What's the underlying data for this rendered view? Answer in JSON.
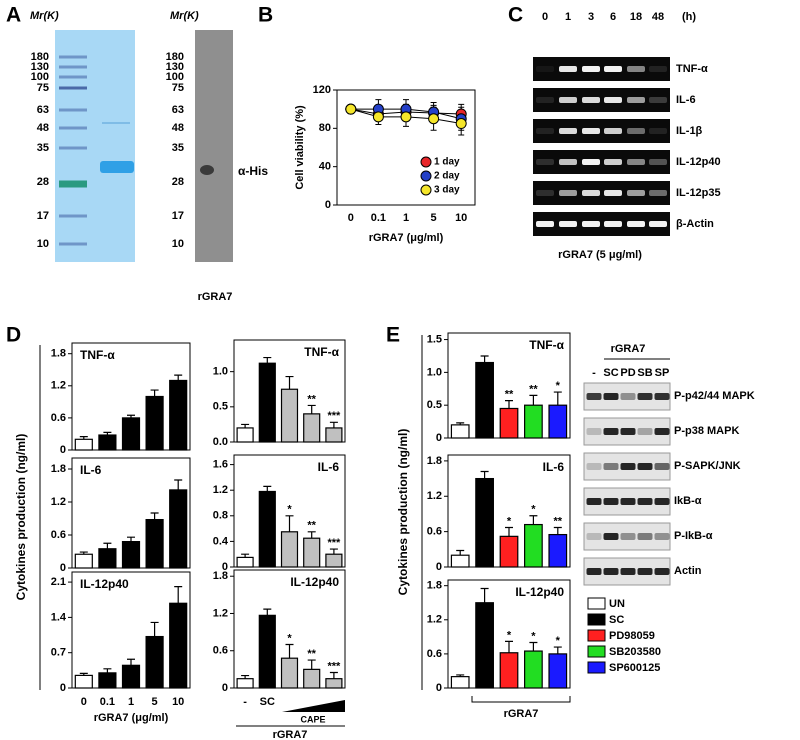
{
  "figure": {
    "panel_labels": [
      "A",
      "B",
      "C",
      "D",
      "E"
    ],
    "gel": {
      "mr_label": "Mr(K)",
      "markers": [
        180,
        130,
        100,
        75,
        63,
        48,
        35,
        28,
        17,
        10
      ],
      "blot_mr_label": "Mr(K)",
      "blot_markers": [
        180,
        130,
        100,
        75,
        63,
        48,
        35,
        28,
        17,
        10
      ],
      "blot_label": "α-His",
      "xlabel": "rGRA7"
    },
    "rtpcr": {
      "times": [
        "0",
        "1",
        "3",
        "6",
        "18",
        "48"
      ],
      "unit": "(h)",
      "genes": [
        "TNF-α",
        "IL-6",
        "IL-1β",
        "IL-12p40",
        "IL-12p35",
        "β-Actin"
      ],
      "xlabel": "rGRA7 (5 μg/ml)"
    },
    "panel_d": {
      "ylabel": "Cytokines production (ng/ml)",
      "left_xlabel": "rGRA7 (μg/ml)",
      "cape_label": "CAPE",
      "mid_xlabel": "rGRA7"
    },
    "panel_e": {
      "ylabel": "Cytokines production (ng/ml)",
      "xlabel": "rGRA7",
      "legend": [
        {
          "name": "UN",
          "color": "#ffffff"
        },
        {
          "name": "SC",
          "color": "#000000"
        },
        {
          "name": "PD98059",
          "color": "#ff2020"
        },
        {
          "name": "SB203580",
          "color": "#22dd22"
        },
        {
          "name": "SP600125",
          "color": "#1a1aff"
        }
      ],
      "blot_header": "rGRA7",
      "blot_lanes": [
        "-",
        "SC",
        "PD",
        "SB",
        "SP"
      ],
      "blot_rows": [
        "P-p42/44 MAPK",
        "P-p38 MAPK",
        "P-SAPK/JNK",
        "IkB-α",
        "P-IkB-α",
        "Actin"
      ]
    }
  },
  "chart_data": [
    {
      "type": "line",
      "ylabel": "Cell viability (%)",
      "xlabel": "rGRA7 (μg/ml)",
      "categories": [
        "0",
        "0.1",
        "1",
        "5",
        "10"
      ],
      "ylim": [
        0,
        120
      ],
      "yticks": [
        0,
        40,
        80,
        120
      ],
      "legend": "lower right",
      "series": [
        {
          "name": "1 day",
          "color": "#e8262a",
          "values": [
            100,
            95,
            97,
            96,
            95
          ],
          "errors": [
            0,
            6,
            8,
            8,
            10
          ]
        },
        {
          "name": "2 day",
          "color": "#2440c8",
          "values": [
            100,
            100,
            100,
            97,
            90
          ],
          "errors": [
            0,
            10,
            10,
            10,
            12
          ]
        },
        {
          "name": "3 day",
          "color": "#f5e62a",
          "values": [
            100,
            92,
            92,
            90,
            85
          ],
          "errors": [
            0,
            8,
            10,
            12,
            12
          ]
        }
      ]
    },
    {
      "type": "bar",
      "title": "TNF-α",
      "ylim": [
        0,
        2.0
      ],
      "yticks": [
        0,
        0.6,
        1.2,
        1.8
      ],
      "values": [
        0.2,
        0.28,
        0.6,
        1.0,
        1.3
      ],
      "errors": [
        0.05,
        0.05,
        0.05,
        0.12,
        0.1
      ],
      "colors": [
        "#ffffff",
        "#000000",
        "#000000",
        "#000000",
        "#000000"
      ]
    },
    {
      "type": "bar",
      "title": "IL-6",
      "ylim": [
        0,
        2.0
      ],
      "yticks": [
        0,
        0.6,
        1.2,
        1.8
      ],
      "values": [
        0.25,
        0.35,
        0.48,
        0.88,
        1.42
      ],
      "errors": [
        0.04,
        0.1,
        0.08,
        0.12,
        0.18
      ],
      "colors": [
        "#ffffff",
        "#000000",
        "#000000",
        "#000000",
        "#000000"
      ]
    },
    {
      "type": "bar",
      "title": "IL-12p40",
      "ylim": [
        0,
        2.3
      ],
      "yticks": [
        0,
        0.7,
        1.4,
        2.1
      ],
      "categories": [
        "0",
        "0.1",
        "1",
        "5",
        "10"
      ],
      "values": [
        0.25,
        0.3,
        0.45,
        1.02,
        1.68
      ],
      "errors": [
        0.04,
        0.08,
        0.12,
        0.28,
        0.33
      ],
      "colors": [
        "#ffffff",
        "#000000",
        "#000000",
        "#000000",
        "#000000"
      ]
    },
    {
      "type": "bar",
      "title": "TNF-α",
      "ylim": [
        0,
        1.45
      ],
      "yticks": [
        {
          "value": 0,
          "label": "0.0"
        },
        0.5,
        {
          "value": 1,
          "label": "1.0"
        }
      ],
      "values": [
        0.2,
        1.12,
        0.75,
        0.4,
        0.2
      ],
      "errors": [
        0.05,
        0.08,
        0.18,
        0.12,
        0.08
      ],
      "annotations": [
        null,
        null,
        null,
        "**",
        "***"
      ],
      "colors": [
        "#ffffff",
        "#000000",
        "#c0c0c0",
        "#c0c0c0",
        "#c0c0c0"
      ]
    },
    {
      "type": "bar",
      "title": "IL-6",
      "ylim": [
        0,
        1.75
      ],
      "yticks": [
        0,
        0.4,
        0.8,
        1.2,
        1.6
      ],
      "values": [
        0.15,
        1.18,
        0.55,
        0.45,
        0.2
      ],
      "errors": [
        0.05,
        0.08,
        0.25,
        0.1,
        0.08
      ],
      "annotations": [
        null,
        null,
        "*",
        "**",
        "***"
      ],
      "colors": [
        "#ffffff",
        "#000000",
        "#c0c0c0",
        "#c0c0c0",
        "#c0c0c0"
      ]
    },
    {
      "type": "bar",
      "title": "IL-12p40",
      "ylim": [
        0,
        1.9
      ],
      "yticks": [
        0,
        0.6,
        1.2,
        1.8
      ],
      "categories": [
        "-",
        "SC",
        null,
        null,
        null
      ],
      "values": [
        0.15,
        1.17,
        0.48,
        0.3,
        0.15
      ],
      "errors": [
        0.05,
        0.1,
        0.22,
        0.15,
        0.1
      ],
      "annotations": [
        null,
        null,
        "*",
        "**",
        "***"
      ],
      "colors": [
        "#ffffff",
        "#000000",
        "#c0c0c0",
        "#c0c0c0",
        "#c0c0c0"
      ]
    },
    {
      "type": "bar",
      "title": "TNF-α",
      "ylim": [
        0,
        1.6
      ],
      "yticks": [
        0,
        0.5,
        {
          "value": 1,
          "label": "1.0"
        },
        1.5
      ],
      "values": [
        0.2,
        1.15,
        0.45,
        0.5,
        0.5
      ],
      "errors": [
        0.03,
        0.1,
        0.12,
        0.15,
        0.2
      ],
      "annotations": [
        null,
        null,
        "**",
        "**",
        "*"
      ],
      "colors": [
        "#ffffff",
        "#000000",
        "#ff2020",
        "#22dd22",
        "#1a1aff"
      ]
    },
    {
      "type": "bar",
      "title": "IL-6",
      "ylim": [
        0,
        1.9
      ],
      "yticks": [
        0,
        0.6,
        1.2,
        1.8
      ],
      "values": [
        0.2,
        1.5,
        0.52,
        0.72,
        0.55
      ],
      "errors": [
        0.08,
        0.12,
        0.15,
        0.15,
        0.12
      ],
      "annotations": [
        null,
        null,
        "*",
        "*",
        "**"
      ],
      "colors": [
        "#ffffff",
        "#000000",
        "#ff2020",
        "#22dd22",
        "#1a1aff"
      ]
    },
    {
      "type": "bar",
      "title": "IL-12p40",
      "ylim": [
        0,
        1.9
      ],
      "yticks": [
        0,
        0.6,
        1.2,
        1.8
      ],
      "values": [
        0.2,
        1.5,
        0.62,
        0.65,
        0.6
      ],
      "errors": [
        0.03,
        0.25,
        0.2,
        0.15,
        0.12
      ],
      "annotations": [
        null,
        null,
        "*",
        "*",
        "*"
      ],
      "colors": [
        "#ffffff",
        "#000000",
        "#ff2020",
        "#22dd22",
        "#1a1aff"
      ]
    }
  ]
}
